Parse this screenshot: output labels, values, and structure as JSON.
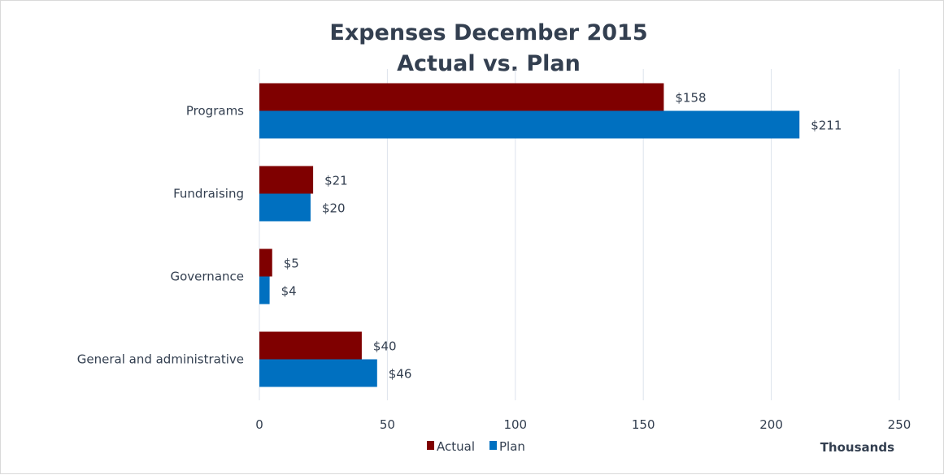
{
  "chart_data": {
    "type": "bar",
    "orientation": "horizontal",
    "title": "Expenses December 2015",
    "subtitle": "Actual vs. Plan",
    "categories": [
      "Programs",
      "Fundraising",
      "Governance",
      "General and administrative"
    ],
    "series": [
      {
        "name": "Actual",
        "color": "#7f0000",
        "values": [
          158,
          21,
          5,
          40
        ],
        "labels": [
          "$158",
          "$21",
          "$5",
          "$40"
        ]
      },
      {
        "name": "Plan",
        "color": "#0070c0",
        "values": [
          211,
          20,
          4,
          46
        ],
        "labels": [
          "$211",
          "$20",
          "$4",
          "$46"
        ]
      }
    ],
    "xlim": [
      0,
      250
    ],
    "xticks": [
      "0",
      "50",
      "100",
      "150",
      "200",
      "250"
    ],
    "xlabel": "Thousands",
    "grid": true,
    "legend": "bottom"
  }
}
